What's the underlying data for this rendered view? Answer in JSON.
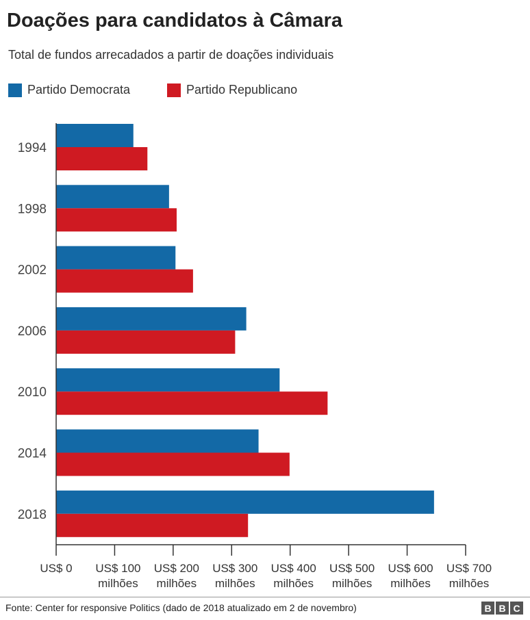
{
  "chart_data": {
    "type": "bar",
    "orientation": "horizontal",
    "title": "Doações para candidatos à Câmara",
    "subtitle": "Total de fundos arrecadados a partir de doações individuais",
    "categories": [
      "1994",
      "1998",
      "2002",
      "2006",
      "2010",
      "2014",
      "2018"
    ],
    "series": [
      {
        "name": "Partido Democrata",
        "color": "#1369a6",
        "values": [
          132,
          193,
          204,
          325,
          382,
          346,
          646
        ]
      },
      {
        "name": "Partido Republicano",
        "color": "#cf1a22",
        "values": [
          156,
          206,
          234,
          306,
          464,
          399,
          328
        ]
      }
    ],
    "xlim": [
      0,
      700
    ],
    "xticks": [
      {
        "value": 0,
        "line1": "US$ 0",
        "line2": ""
      },
      {
        "value": 100,
        "line1": "US$ 100",
        "line2": "milhões"
      },
      {
        "value": 200,
        "line1": "US$ 200",
        "line2": "milhões"
      },
      {
        "value": 300,
        "line1": "US$ 300",
        "line2": "milhões"
      },
      {
        "value": 400,
        "line1": "US$ 400",
        "line2": "milhões"
      },
      {
        "value": 500,
        "line1": "US$ 500",
        "line2": "milhões"
      },
      {
        "value": 600,
        "line1": "US$ 600",
        "line2": "milhões"
      },
      {
        "value": 700,
        "line1": "US$ 700",
        "line2": "milhões"
      }
    ],
    "grid": false,
    "legend": "top-left"
  },
  "footer": {
    "source": "Fonte: Center for responsive Politics (dado de 2018 atualizado em 2 de novembro)",
    "logo": [
      "B",
      "B",
      "C"
    ]
  }
}
